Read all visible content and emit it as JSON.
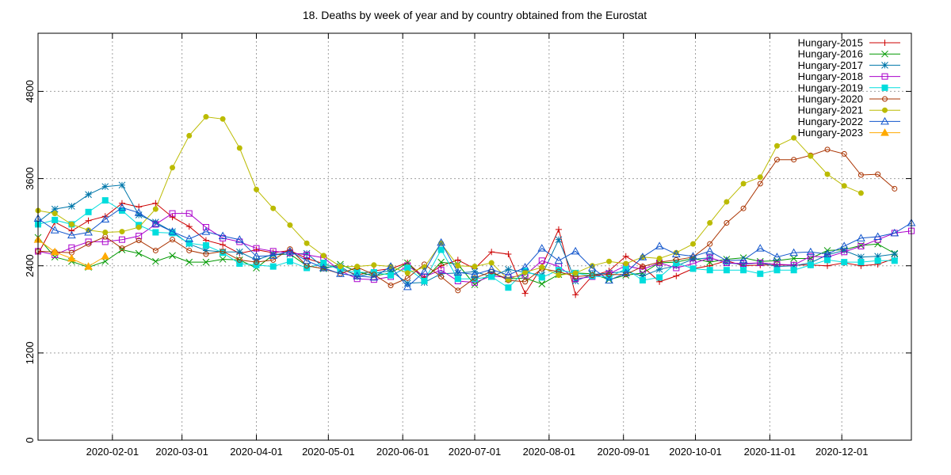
{
  "chart_data": {
    "type": "line",
    "title": "18. Deaths by week of year and by country obtained from the Eurostat",
    "xlabel": "",
    "ylabel": "",
    "grid": true,
    "legend_position": "top-right",
    "ylim": [
      0,
      5600
    ],
    "yticks": [
      0,
      1200,
      2400,
      3600,
      4800
    ],
    "xticks": [
      "2020-02-01",
      "2020-03-01",
      "2020-04-01",
      "2020-05-01",
      "2020-06-01",
      "2020-07-01",
      "2020-08-01",
      "2020-09-01",
      "2020-10-01",
      "2020-11-01",
      "2020-12-01"
    ],
    "series": [
      {
        "name": "Hungary-2015",
        "color": "#cc0000",
        "marker": "plus",
        "values": [
          2560,
          3000,
          2880,
          3020,
          3080,
          3260,
          3210,
          3260,
          3070,
          2940,
          2750,
          2690,
          2570,
          2620,
          2580,
          2610,
          2500,
          2430,
          2360,
          2270,
          2330,
          2360,
          2440,
          2240,
          2400,
          2480,
          2360,
          2590,
          2560,
          2020,
          2390,
          2900,
          2000,
          2260,
          2330,
          2530,
          2390,
          2180,
          2260,
          2360,
          2400,
          2470,
          2400,
          2410,
          2410,
          2410,
          2410,
          2400,
          2440,
          2400,
          2420,
          2500
        ]
      },
      {
        "name": "Hungary-2016",
        "color": "#009900",
        "marker": "x",
        "values": [
          2790,
          2520,
          2460,
          2380,
          2460,
          2620,
          2570,
          2460,
          2540,
          2450,
          2450,
          2490,
          2480,
          2370,
          2550,
          2560,
          2400,
          2360,
          2420,
          2320,
          2260,
          2300,
          2440,
          2210,
          2450,
          2420,
          2140,
          2300,
          2220,
          2230,
          2150,
          2280,
          2300,
          2290,
          2210,
          2270,
          2300,
          2440,
          2450,
          2500,
          2450,
          2490,
          2510,
          2460,
          2470,
          2500,
          2500,
          2610,
          2620,
          2680,
          2700,
          2570
        ]
      },
      {
        "name": "Hungary-2017",
        "color": "#0077aa",
        "marker": "asterisk",
        "values": [
          3000,
          3180,
          3220,
          3380,
          3490,
          3510,
          3100,
          3000,
          2870,
          2700,
          2610,
          2590,
          2590,
          2480,
          2560,
          2560,
          2570,
          2380,
          2390,
          2250,
          2300,
          2330,
          2160,
          2170,
          2290,
          2300,
          2320,
          2250,
          2350,
          2310,
          2270,
          2760,
          2190,
          2280,
          2300,
          2320,
          2260,
          2350,
          2400,
          2490,
          2510,
          2440,
          2420,
          2440,
          2390,
          2400,
          2440,
          2550,
          2610,
          2520,
          2530,
          2560
        ]
      },
      {
        "name": "Hungary-2018",
        "color": "#aa00cc",
        "marker": "square",
        "values": [
          2600,
          2550,
          2650,
          2730,
          2730,
          2760,
          2810,
          2970,
          3120,
          3120,
          2930,
          2780,
          2730,
          2640,
          2600,
          2580,
          2550,
          2510,
          2330,
          2220,
          2210,
          2250,
          2400,
          2250,
          2340,
          2190,
          2170,
          2260,
          2240,
          2270,
          2470,
          2390,
          2220,
          2250,
          2290,
          2400,
          2350,
          2440,
          2370,
          2430,
          2510,
          2440,
          2430,
          2440,
          2420,
          2410,
          2530,
          2520,
          2590,
          2670,
          2760,
          2850,
          2880
        ]
      },
      {
        "name": "Hungary-2019",
        "color": "#00dddd",
        "marker": "square-filled",
        "values": [
          2970,
          3030,
          2970,
          3140,
          3300,
          3160,
          2960,
          2860,
          2850,
          2710,
          2680,
          2580,
          2430,
          2410,
          2390,
          2460,
          2370,
          2440,
          2340,
          2310,
          2310,
          2270,
          2370,
          2190,
          2620,
          2220,
          2220,
          2250,
          2100,
          2330,
          2240,
          2340,
          2300,
          2260,
          2240,
          2360,
          2200,
          2240,
          2440,
          2360,
          2340,
          2340,
          2340,
          2290,
          2340,
          2340,
          2410,
          2480,
          2450,
          2450,
          2470,
          2470
        ]
      },
      {
        "name": "Hungary-2020",
        "color": "#aa3300",
        "marker": "circle",
        "values": [
          2600,
          2590,
          2580,
          2700,
          2800,
          2640,
          2750,
          2610,
          2760,
          2610,
          2560,
          2600,
          2480,
          2450,
          2480,
          2630,
          2400,
          2360,
          2290,
          2380,
          2280,
          2130,
          2230,
          2420,
          2250,
          2060,
          2230,
          2320,
          2200,
          2180,
          2360,
          2320,
          2250,
          2270,
          2280,
          2280,
          2390,
          2450,
          2480,
          2520,
          2700,
          2990,
          3190,
          3530,
          3860,
          3860,
          3920,
          4000,
          3940,
          3650,
          3660,
          3460
        ]
      },
      {
        "name": "Hungary-2021",
        "color": "#bbbb00",
        "marker": "circle-filled",
        "values": [
          3160,
          3120,
          2970,
          2890,
          2860,
          2870,
          2930,
          3180,
          3750,
          4190,
          4450,
          4420,
          4020,
          3450,
          3190,
          2960,
          2710,
          2540,
          2390,
          2390,
          2410,
          2390,
          2300,
          2380,
          2710,
          2400,
          2390,
          2440,
          2210,
          2310,
          2380,
          2270,
          2300,
          2400,
          2460,
          2430,
          2520,
          2500,
          2580,
          2700,
          2990,
          3280,
          3530,
          3620,
          4050,
          4160,
          3910,
          3660,
          3500,
          3400
        ]
      },
      {
        "name": "Hungary-2022",
        "color": "#1155cc",
        "marker": "triangle",
        "values": [
          3050,
          2890,
          2820,
          2860,
          3040,
          3200,
          3130,
          2980,
          2870,
          2770,
          2870,
          2810,
          2760,
          2530,
          2540,
          2600,
          2470,
          2370,
          2290,
          2260,
          2240,
          2390,
          2110,
          2320,
          2720,
          2310,
          2280,
          2350,
          2270,
          2380,
          2640,
          2470,
          2600,
          2370,
          2200,
          2300,
          2520,
          2670,
          2560,
          2530,
          2600,
          2470,
          2480,
          2640,
          2520,
          2580,
          2590,
          2560,
          2670,
          2780,
          2800,
          2850,
          2990
        ]
      },
      {
        "name": "Hungary-2023",
        "color": "#ffaa00",
        "marker": "triangle-filled",
        "values": [
          2760,
          2590,
          2500,
          2390,
          2530
        ]
      }
    ],
    "xrange": [
      0,
      52
    ]
  }
}
